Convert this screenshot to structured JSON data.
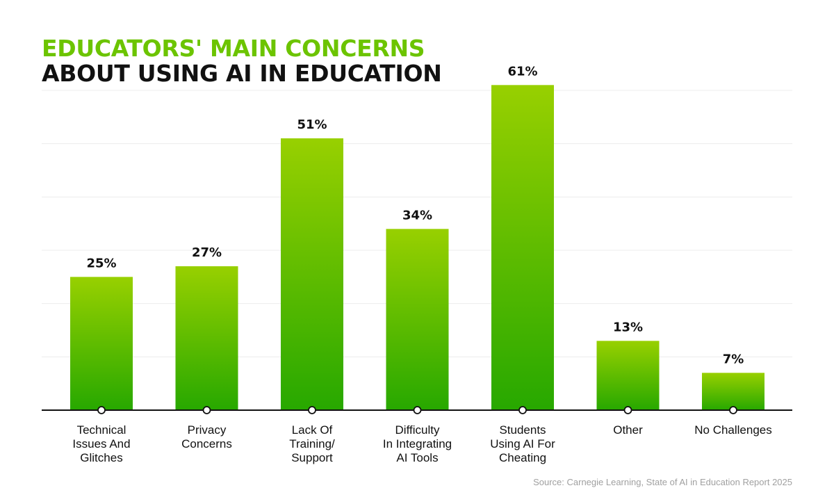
{
  "title": {
    "line1": "EDUCATORS' MAIN CONCERNS",
    "line2": "ABOUT USING AI IN EDUCATION"
  },
  "colors": {
    "accent": "#6cc400",
    "title_dark": "#111111",
    "bar_top": "#98d000",
    "bar_bottom": "#27a800",
    "grid": "#ececec",
    "axis": "#111111"
  },
  "source": "Source: Carnegie Learning, State of AI in Education Report 2025",
  "chart_data": {
    "type": "bar",
    "title": "EDUCATORS' MAIN CONCERNS ABOUT USING AI IN EDUCATION",
    "categories": [
      [
        "Technical",
        "Issues And",
        "Glitches"
      ],
      [
        "Privacy",
        "Concerns"
      ],
      [
        "Lack Of",
        "Training/",
        "Support"
      ],
      [
        "Difficulty",
        "In Integrating",
        "AI Tools"
      ],
      [
        "Students",
        "Using AI For",
        "Cheating"
      ],
      [
        "Other"
      ],
      [
        "No Challenges"
      ]
    ],
    "values": [
      25,
      27,
      51,
      34,
      61,
      13,
      7
    ],
    "value_labels": [
      "25%",
      "27%",
      "51%",
      "34%",
      "61%",
      "13%",
      "7%"
    ],
    "unit": "%",
    "ylim": [
      0,
      60
    ],
    "grid": true,
    "xlabel": "",
    "ylabel": ""
  }
}
